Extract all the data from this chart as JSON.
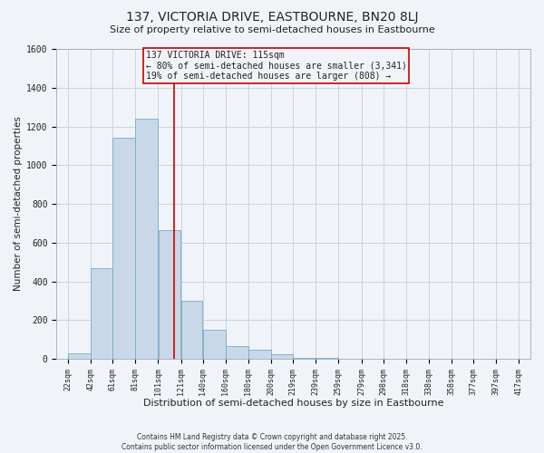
{
  "title": "137, VICTORIA DRIVE, EASTBOURNE, BN20 8LJ",
  "subtitle": "Size of property relative to semi-detached houses in Eastbourne",
  "xlabel": "Distribution of semi-detached houses by size in Eastbourne",
  "ylabel": "Number of semi-detached properties",
  "bar_left_edges": [
    22,
    42,
    61,
    81,
    101,
    121,
    140,
    160,
    180,
    200,
    219,
    239,
    259,
    279,
    298,
    318,
    338,
    358,
    377,
    397
  ],
  "bar_widths": [
    20,
    19,
    20,
    20,
    20,
    19,
    20,
    20,
    20,
    19,
    20,
    20,
    20,
    19,
    20,
    20,
    20,
    19,
    20,
    20
  ],
  "bar_heights": [
    30,
    470,
    1140,
    1240,
    665,
    300,
    150,
    65,
    45,
    25,
    5,
    3,
    1,
    1,
    0,
    0,
    0,
    0,
    0,
    0
  ],
  "bar_color": "#c8d8e8",
  "bar_edgecolor": "#7aaac8",
  "tick_labels": [
    "22sqm",
    "42sqm",
    "61sqm",
    "81sqm",
    "101sqm",
    "121sqm",
    "140sqm",
    "160sqm",
    "180sqm",
    "200sqm",
    "219sqm",
    "239sqm",
    "259sqm",
    "279sqm",
    "298sqm",
    "318sqm",
    "338sqm",
    "358sqm",
    "377sqm",
    "397sqm",
    "417sqm"
  ],
  "tick_positions": [
    22,
    42,
    61,
    81,
    101,
    121,
    140,
    160,
    180,
    200,
    219,
    239,
    259,
    279,
    298,
    318,
    338,
    358,
    377,
    397,
    417
  ],
  "ylim": [
    0,
    1600
  ],
  "xlim": [
    12,
    427
  ],
  "property_line_x": 115,
  "property_line_color": "#cc0000",
  "annotation_title": "137 VICTORIA DRIVE: 115sqm",
  "annotation_line1": "← 80% of semi-detached houses are smaller (3,341)",
  "annotation_line2": "19% of semi-detached houses are larger (808) →",
  "annotation_box_color": "#cc0000",
  "grid_color": "#c8d4de",
  "background_color": "#f0f4f8",
  "text_color": "#222222",
  "footer1": "Contains HM Land Registry data © Crown copyright and database right 2025.",
  "footer2": "Contains public sector information licensed under the Open Government Licence v3.0."
}
